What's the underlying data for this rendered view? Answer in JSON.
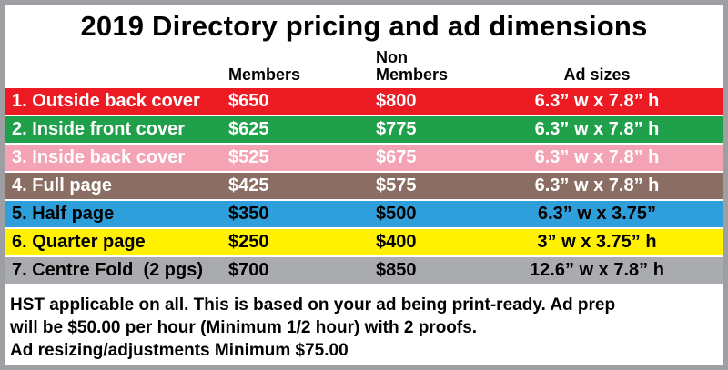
{
  "chart_data": {
    "type": "table",
    "title": "2019 Directory pricing and ad dimensions",
    "columns": [
      "",
      "Members",
      "Non Members",
      "Ad sizes"
    ],
    "rows": [
      {
        "label": "1. Outside back cover",
        "members": "$650",
        "non_members": "$800",
        "ad_size": "6.3” w x 7.8” h",
        "bg": "#EC1B23",
        "fg": "#FFFFFF"
      },
      {
        "label": "2. Inside front cover",
        "members": "$625",
        "non_members": "$775",
        "ad_size": "6.3” w x 7.8” h",
        "bg": "#21A04B",
        "fg": "#FFFFFF"
      },
      {
        "label": "3. Inside back cover",
        "members": "$525",
        "non_members": "$675",
        "ad_size": "6.3” w x 7.8” h",
        "bg": "#F4A3B5",
        "fg": "#FFFFFF"
      },
      {
        "label": "4. Full page",
        "members": "$425",
        "non_members": "$575",
        "ad_size": "6.3” w x 7.8” h",
        "bg": "#8A6E63",
        "fg": "#FFFFFF"
      },
      {
        "label": "5. Half page",
        "members": "$350",
        "non_members": "$500",
        "ad_size": "6.3” w x 3.75”",
        "bg": "#2E9FDA",
        "fg": "#000000"
      },
      {
        "label": "6. Quarter page",
        "members": "$250",
        "non_members": "$400",
        "ad_size": "3” w x 3.75” h",
        "bg": "#FFF100",
        "fg": "#000000"
      },
      {
        "label": "7. Centre Fold  (2 pgs)",
        "members": "$700",
        "non_members": "$850",
        "ad_size": "12.6” w x 7.8” h",
        "bg": "#A9ABAE",
        "fg": "#000000"
      }
    ]
  },
  "footer": {
    "lines": [
      "HST applicable on all. This is based on your ad being print-ready. Ad prep",
      "will be $50.00 per hour (Minimum 1/2 hour) with 2 proofs.",
      "Ad resizing/adjustments Minimum $75.00"
    ]
  }
}
